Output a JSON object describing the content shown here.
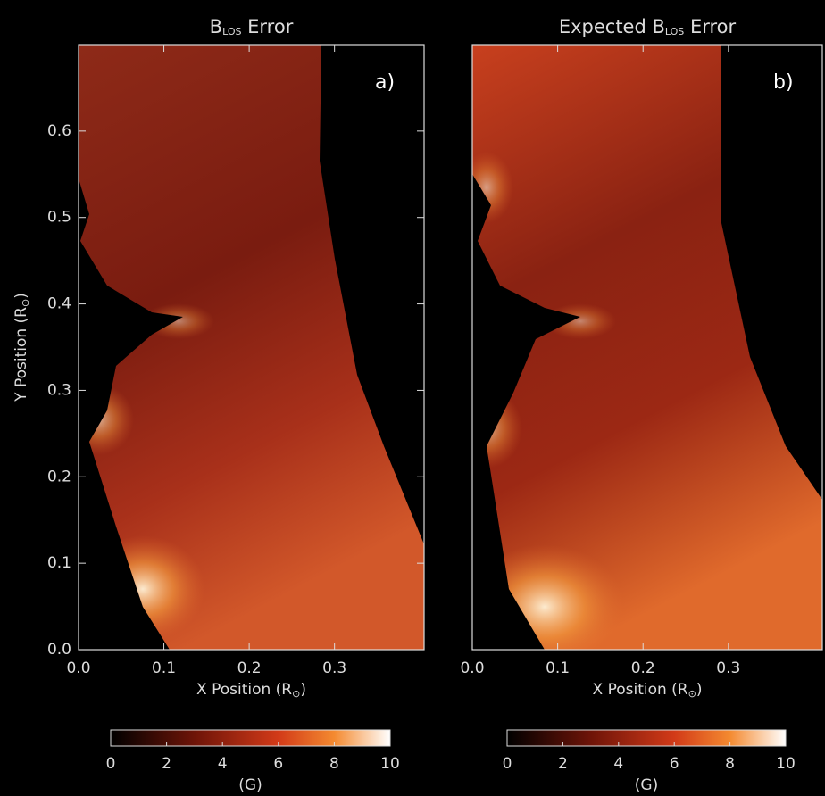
{
  "chart_data": [
    {
      "type": "heatmap",
      "title": {
        "main": "B",
        "sub": "LOS",
        "rest": " Error"
      },
      "panel_label": "a)",
      "x_label": {
        "main": "X Position (R",
        "sub": "⊙",
        "rest": ")"
      },
      "y_label": {
        "main": "Y Position (R",
        "sub": "⊙",
        "rest": ")"
      },
      "xlim": [
        0,
        0.405
      ],
      "ylim": [
        0,
        0.7
      ],
      "xticks": [
        {
          "value": 0,
          "label": "0.0"
        },
        0.1,
        0.2,
        0.3
      ],
      "yticks": [
        {
          "value": 0,
          "label": "0.0"
        },
        0.1,
        0.2,
        0.3,
        0.4,
        0.5,
        0.6
      ],
      "colorbar": {
        "lim": [
          0,
          10
        ],
        "ticks": [
          0,
          2,
          4,
          6,
          8,
          10
        ],
        "label": "(G)"
      }
    },
    {
      "type": "heatmap",
      "title": {
        "main": "Expected B",
        "sub": "LOS",
        "rest": " Error"
      },
      "panel_label": "b)",
      "x_label": {
        "main": "X Position (R",
        "sub": "⊙",
        "rest": ")"
      },
      "xlim": [
        0,
        0.41
      ],
      "ylim": [
        0,
        0.7
      ],
      "xticks": [
        {
          "value": 0,
          "label": "0.0"
        },
        0.1,
        0.2,
        0.3
      ],
      "colorbar": {
        "lim": [
          0,
          10
        ],
        "ticks": [
          0,
          2,
          4,
          6,
          8,
          10
        ],
        "label": "(G)"
      }
    }
  ]
}
